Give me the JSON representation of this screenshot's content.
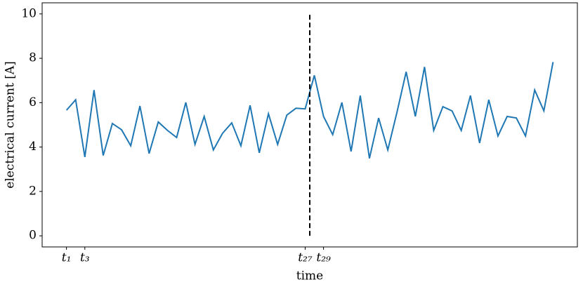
{
  "chart_data": {
    "type": "line",
    "xlabel": "time",
    "ylabel": "electrical current [A]",
    "x": [
      1,
      2,
      3,
      4,
      5,
      6,
      7,
      8,
      9,
      10,
      11,
      12,
      13,
      14,
      15,
      16,
      17,
      18,
      19,
      20,
      21,
      22,
      23,
      24,
      25,
      26,
      27,
      28,
      29,
      30,
      31,
      32,
      33,
      34,
      35,
      36,
      37,
      38,
      39,
      40,
      41,
      42,
      43,
      44,
      45,
      46,
      47,
      48,
      49,
      50,
      51,
      52,
      53,
      54
    ],
    "series": [
      {
        "color": "#1f77b4",
        "values": [
          5.66,
          6.13,
          3.55,
          6.57,
          3.62,
          5.06,
          4.78,
          4.06,
          5.85,
          3.71,
          5.13,
          4.75,
          4.43,
          6.01,
          4.12,
          5.38,
          3.87,
          4.62,
          5.09,
          4.06,
          5.88,
          3.74,
          5.5,
          4.12,
          5.44,
          5.75,
          5.72,
          7.23,
          5.38,
          4.56,
          6.01,
          3.8,
          6.32,
          3.49,
          5.31,
          3.87,
          5.57,
          7.39,
          5.38,
          7.61,
          4.75,
          5.82,
          5.63,
          4.75,
          6.32,
          4.18,
          6.13,
          4.5,
          5.38,
          5.31,
          4.5,
          6.57,
          5.63,
          7.83
        ]
      }
    ],
    "vline": {
      "x": 27.5,
      "ymin": 0,
      "ymax": 10,
      "color": "#000000",
      "style": "dashed"
    },
    "xlim": [
      -1.65,
      56.65
    ],
    "ylim": [
      -0.5,
      10.5
    ],
    "xticks": [
      {
        "value": 1,
        "label": "t₁"
      },
      {
        "value": 3,
        "label": "t₃"
      },
      {
        "value": 27,
        "label": "t₂₇"
      },
      {
        "value": 29,
        "label": "t₂₉"
      }
    ],
    "yticks": [
      0,
      2,
      4,
      6,
      8,
      10
    ],
    "grid": false
  }
}
